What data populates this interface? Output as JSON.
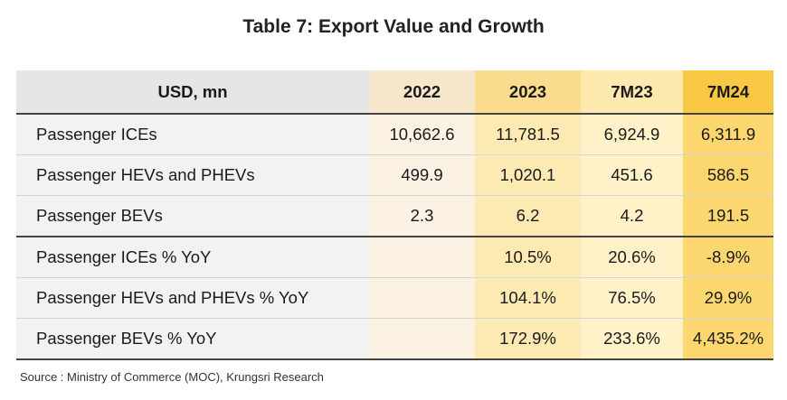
{
  "title": "Table 7: Export Value and Growth",
  "table": {
    "headers": [
      "USD, mn",
      "2022",
      "2023",
      "7M23",
      "7M24"
    ],
    "rows": [
      [
        "Passenger ICEs",
        "10,662.6",
        "11,781.5",
        "6,924.9",
        "6,311.9"
      ],
      [
        "Passenger HEVs and PHEVs",
        "499.9",
        "1,020.1",
        "451.6",
        "586.5"
      ],
      [
        "Passenger BEVs",
        "2.3",
        "6.2",
        "4.2",
        "191.5"
      ],
      [
        "Passenger ICEs % YoY",
        "",
        "10.5%",
        "20.6%",
        "-8.9%"
      ],
      [
        "Passenger HEVs and PHEVs % YoY",
        "",
        "104.1%",
        "76.5%",
        "29.9%"
      ],
      [
        "Passenger BEVs % YoY",
        "",
        "172.9%",
        "233.6%",
        "4,435.2%"
      ]
    ]
  },
  "source": "Source : Ministry of Commerce (MOC), Krungsri Research",
  "colors": {
    "header_label_bg": "#e6e6e6",
    "col_2022_bg": "#fbf2e4",
    "col_2023_bg": "#fde9b2",
    "col_7M23_bg": "#fff1c8",
    "col_7M24_bg": "#fcd66f"
  }
}
